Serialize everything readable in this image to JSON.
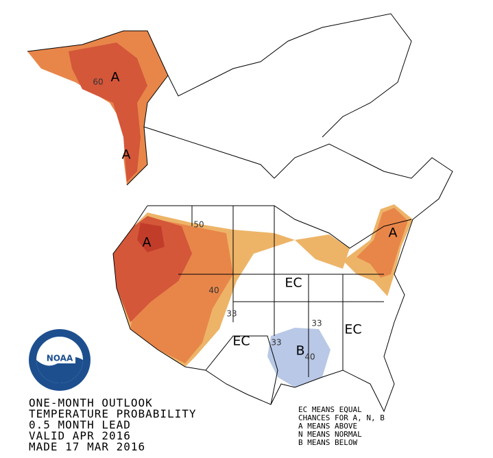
{
  "logo": {
    "text": "NOAA"
  },
  "title_block": {
    "lines": [
      "ONE-MONTH OUTLOOK",
      "TEMPERATURE PROBABILITY",
      "0.5 MONTH LEAD",
      "VALID APR 2016",
      "MADE 17 MAR 2016"
    ]
  },
  "legend": {
    "lines": [
      "EC MEANS EQUAL",
      "CHANCES FOR A, N, B",
      "A MEANS ABOVE",
      "N MEANS NORMAL",
      "B MEANS BELOW"
    ]
  },
  "map_labels": [
    {
      "text": "A"
    },
    {
      "text": "A"
    },
    {
      "text": "A"
    },
    {
      "text": "A"
    },
    {
      "text": "EC"
    },
    {
      "text": "EC"
    },
    {
      "text": "EC"
    },
    {
      "text": "B"
    }
  ],
  "contour_labels": [
    60,
    50,
    40,
    33,
    33,
    33,
    40
  ]
}
